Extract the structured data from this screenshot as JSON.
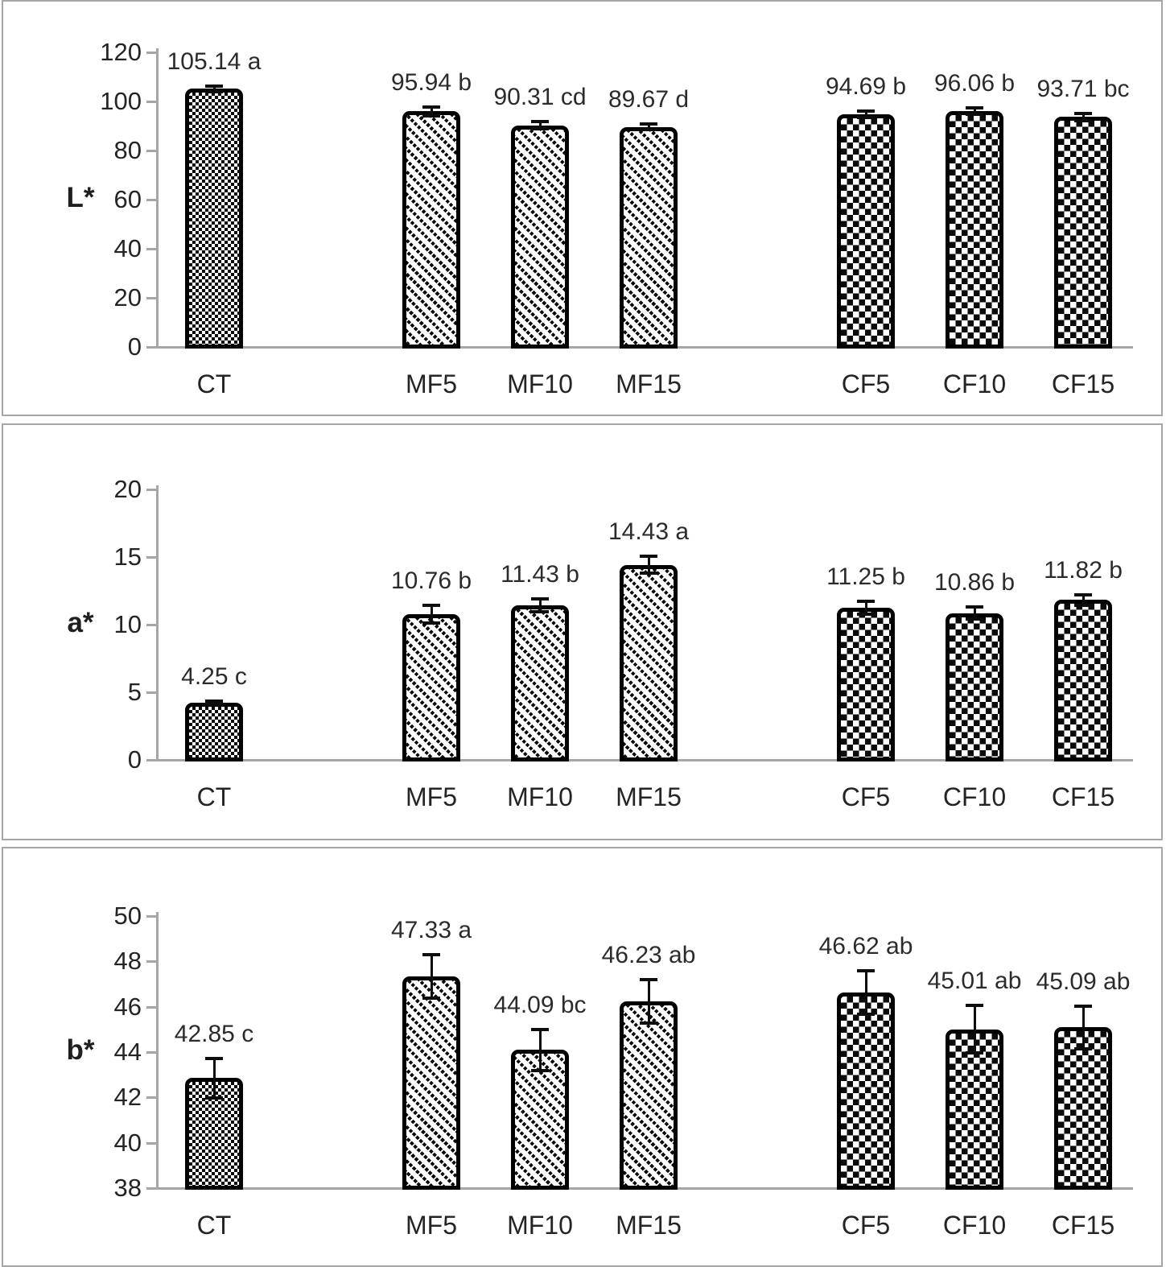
{
  "colors": {
    "axis": "#a6a6a6",
    "text": "#242424",
    "bar_outline": "#000000",
    "pattern_foreground": "#0b0b0b",
    "pattern_background": "#ffffff"
  },
  "chart_data": [
    {
      "type": "bar",
      "panel": "top",
      "title": "",
      "xlabel": "",
      "ylabel": "L*",
      "ylim": [
        0,
        120
      ],
      "ytick_step": 20,
      "ytick_labels": [
        "120",
        "100",
        "80",
        "60",
        "40",
        "20",
        "0"
      ],
      "grid": false,
      "legend": null,
      "categories": [
        "CT",
        "MF5",
        "MF10",
        "MF15",
        "CF5",
        "CF10",
        "CF15"
      ],
      "values": [
        105.14,
        95.94,
        90.31,
        89.67,
        94.69,
        96.06,
        93.71
      ],
      "error_bars": [
        1.2,
        1.7,
        1.6,
        1.2,
        1.4,
        1.4,
        1.5
      ],
      "data_labels": [
        "105.14 a",
        "95.94 b",
        "90.31 cd",
        "89.67 d",
        "94.69 b",
        "96.06 b",
        "93.71 bc"
      ],
      "bar_patterns": [
        "checker-small",
        "diagonal-dots",
        "diagonal-dots",
        "diagonal-dots",
        "checker-large",
        "checker-large",
        "checker-large"
      ],
      "slots": [
        0,
        2,
        3,
        4,
        6,
        7,
        8
      ],
      "n_slots": 9
    },
    {
      "type": "bar",
      "panel": "middle",
      "title": "",
      "xlabel": "",
      "ylabel": "a*",
      "ylim": [
        0,
        20
      ],
      "ytick_step": 5,
      "ytick_labels": [
        "20",
        "15",
        "10",
        "5",
        "0"
      ],
      "grid": false,
      "legend": null,
      "categories": [
        "CT",
        "MF5",
        "MF10",
        "MF15",
        "CF5",
        "CF10",
        "CF15"
      ],
      "values": [
        4.25,
        10.76,
        11.43,
        14.43,
        11.25,
        10.86,
        11.82
      ],
      "error_bars": [
        0.12,
        0.65,
        0.5,
        0.6,
        0.5,
        0.45,
        0.4
      ],
      "data_labels": [
        "4.25 c",
        "10.76 b",
        "11.43 b",
        "14.43 a",
        "11.25 b",
        "10.86 b",
        "11.82 b"
      ],
      "bar_patterns": [
        "checker-small",
        "diagonal-dots",
        "diagonal-dots",
        "diagonal-dots",
        "checker-large",
        "checker-large",
        "checker-large"
      ],
      "slots": [
        0,
        2,
        3,
        4,
        6,
        7,
        8
      ],
      "n_slots": 9
    },
    {
      "type": "bar",
      "panel": "bottom",
      "title": "",
      "xlabel": "",
      "ylabel": "b*",
      "ylim": [
        38,
        50
      ],
      "ytick_step": 2,
      "ytick_labels": [
        "50",
        "48",
        "46",
        "44",
        "42",
        "40",
        "38"
      ],
      "grid": false,
      "legend": null,
      "categories": [
        "CT",
        "MF5",
        "MF10",
        "MF15",
        "CF5",
        "CF10",
        "CF15"
      ],
      "values": [
        42.85,
        47.33,
        44.09,
        46.23,
        46.62,
        45.01,
        45.09
      ],
      "error_bars": [
        0.88,
        0.95,
        0.92,
        0.95,
        0.95,
        1.05,
        0.95
      ],
      "data_labels": [
        "42.85 c",
        "47.33 a",
        "44.09 bc",
        "46.23 ab",
        "46.62 ab",
        "45.01 ab",
        "45.09 ab"
      ],
      "bar_patterns": [
        "checker-small",
        "diagonal-dots",
        "diagonal-dots",
        "diagonal-dots",
        "checker-large",
        "checker-large",
        "checker-large"
      ],
      "slots": [
        0,
        2,
        3,
        4,
        6,
        7,
        8
      ],
      "n_slots": 9
    }
  ]
}
